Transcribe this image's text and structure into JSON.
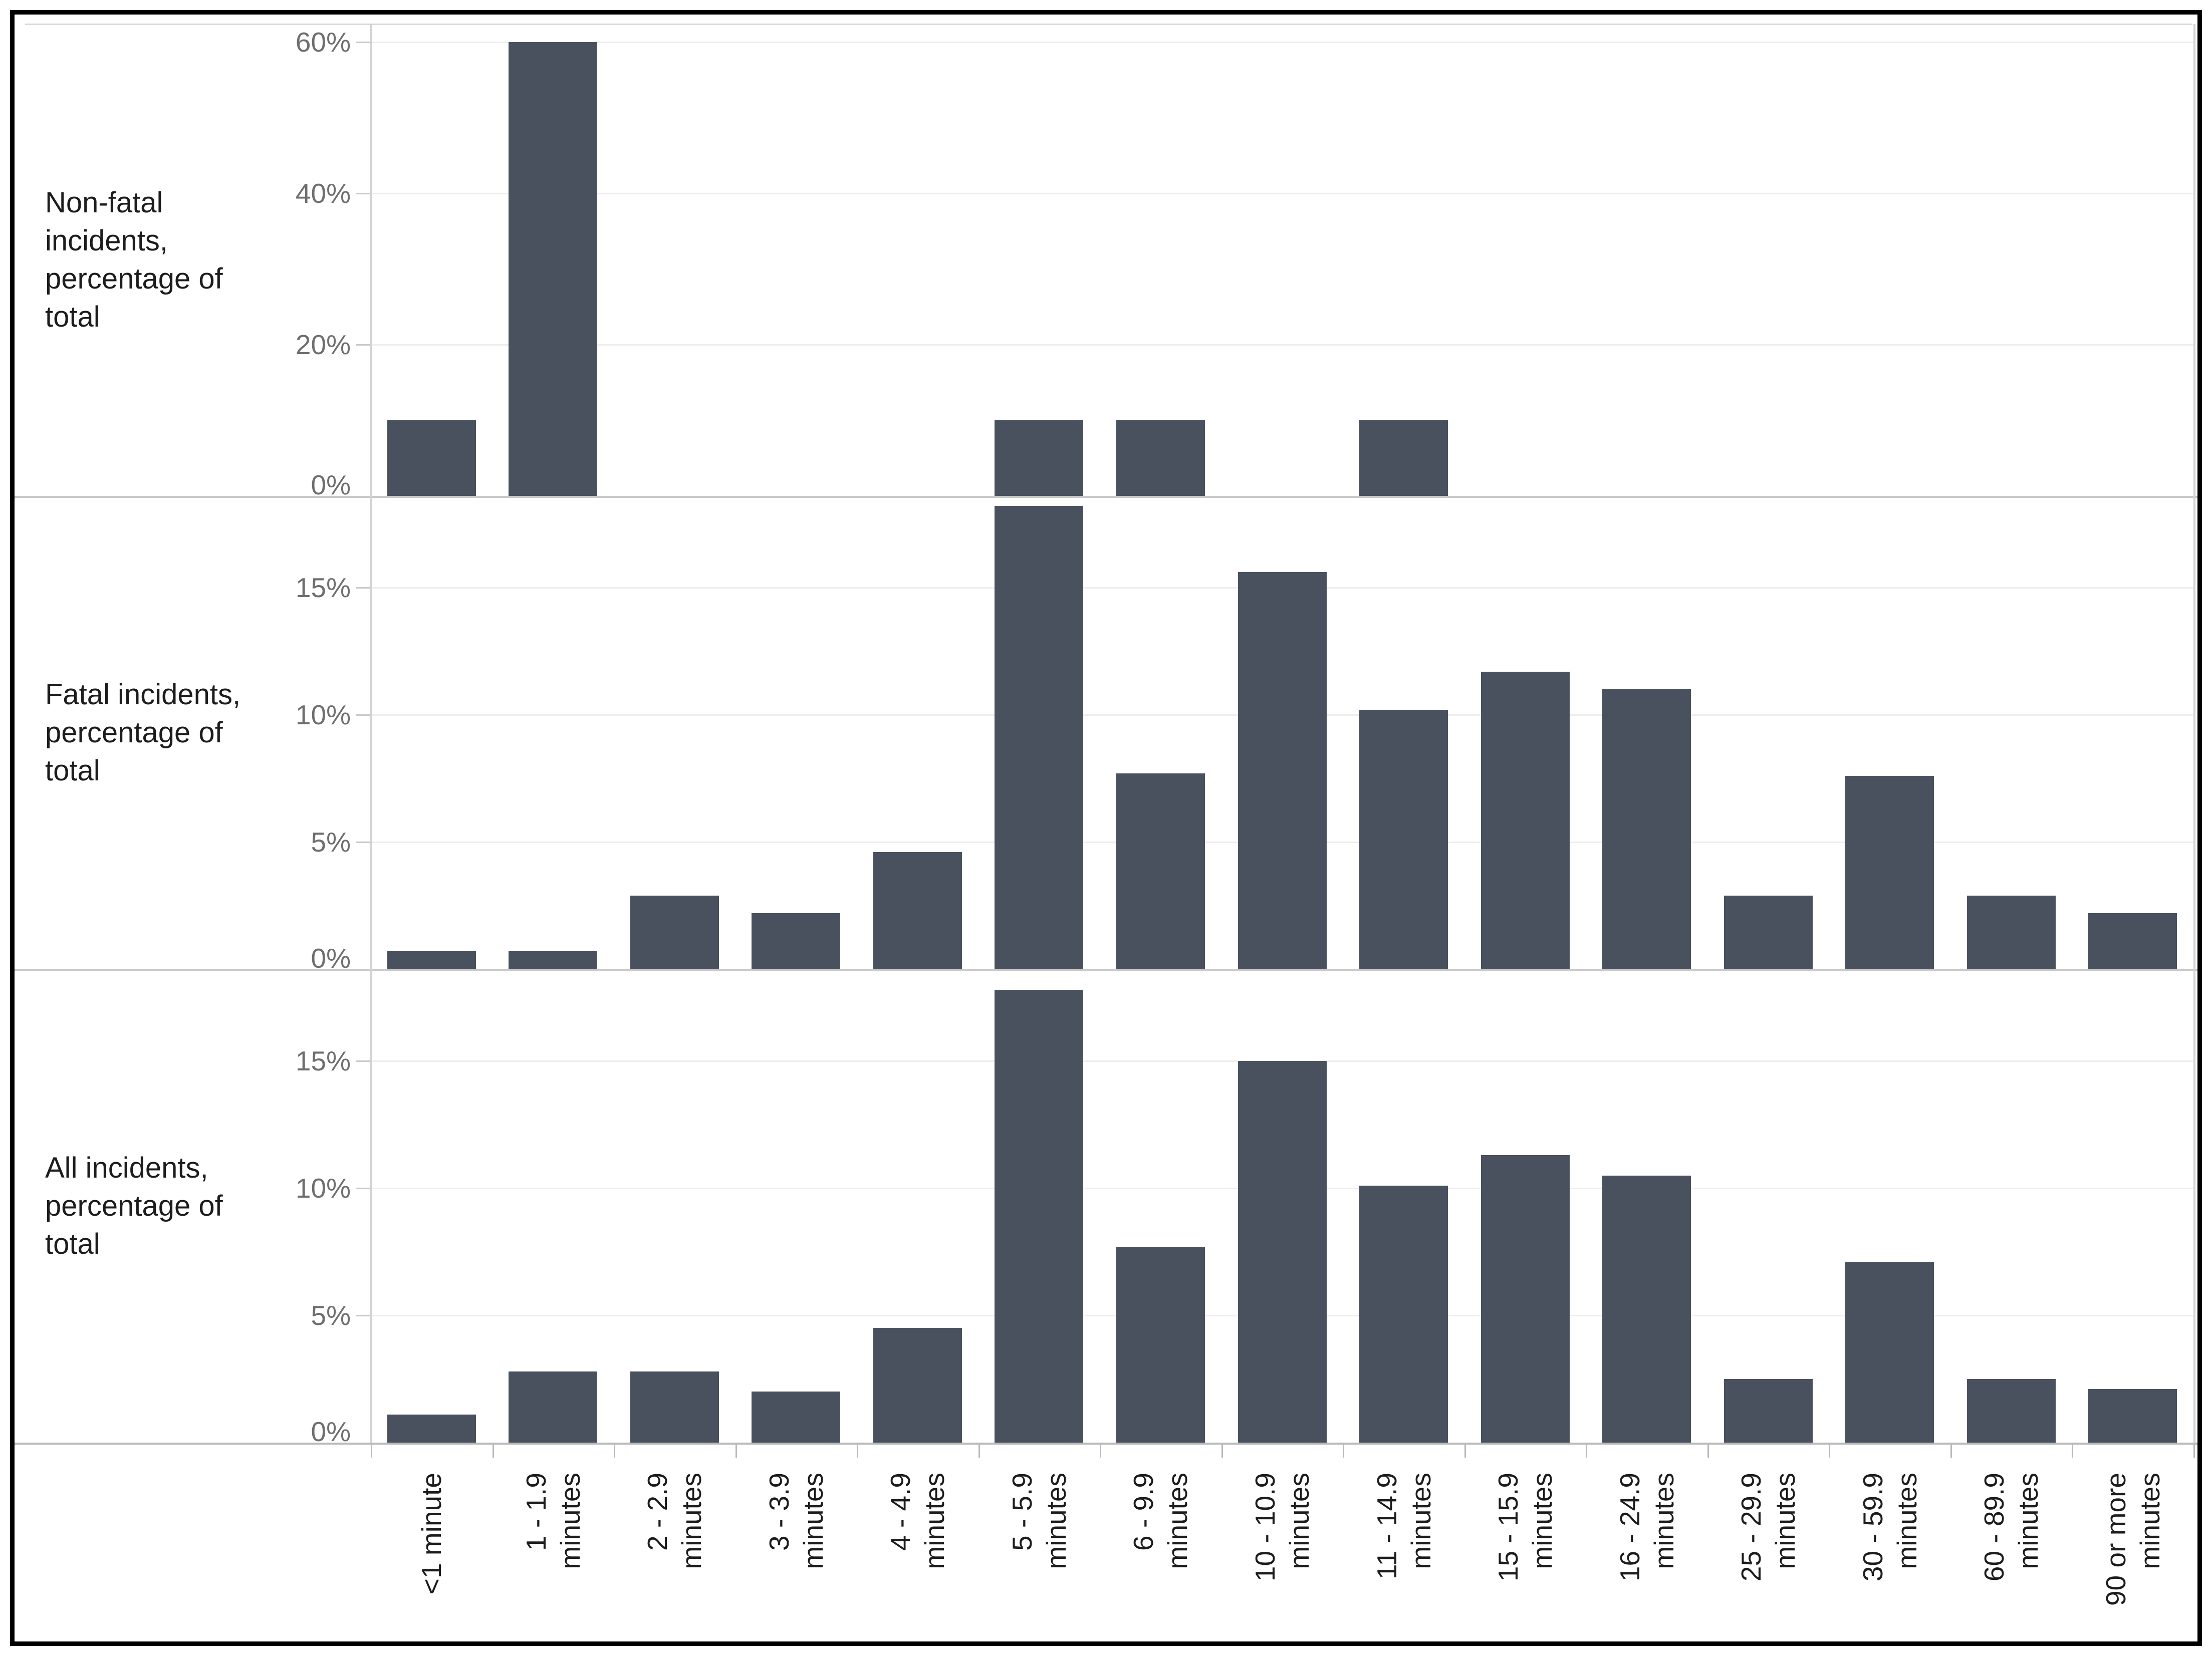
{
  "figure": {
    "background": "#ffffff",
    "frame_color": "#000000",
    "bar_color": "#4a515e",
    "gridline_color": "#eeeeee",
    "panel_separator_color": "#c9c9c9",
    "bottom_axis_color": "#b9b9b9",
    "plot_border_color": "#d2d2d2",
    "top_border_color": "#d9d9d9",
    "tick_label_color": "#6e6e6e",
    "text_color": "#1c1c1c"
  },
  "chart_data": {
    "type": "bar",
    "layout": "small_multiples_rows",
    "title": "",
    "xlabel": "",
    "grid": true,
    "legend": false,
    "x_unit": "incident duration",
    "categories": [
      "<1 minute",
      "1 - 1.9 minutes",
      "2 - 2.9 minutes",
      "3 - 3.9 minutes",
      "4 - 4.9 minutes",
      "5 - 5.9 minutes",
      "6 - 9.9 minutes",
      "10 - 10.9 minutes",
      "11 - 14.9 minutes",
      "15 - 15.9 minutes",
      "16 - 24.9 minutes",
      "25 - 29.9 minutes",
      "30 - 59.9 minutes",
      "60 - 89.9 minutes",
      "90 or more minutes"
    ],
    "category_label_lines": [
      [
        "<1 minute"
      ],
      [
        "1 - 1.9",
        "minutes"
      ],
      [
        "2 - 2.9",
        "minutes"
      ],
      [
        "3 - 3.9",
        "minutes"
      ],
      [
        "4 - 4.9",
        "minutes"
      ],
      [
        "5 - 5.9",
        "minutes"
      ],
      [
        "6 - 9.9",
        "minutes"
      ],
      [
        "10 - 10.9",
        "minutes"
      ],
      [
        "11 - 14.9",
        "minutes"
      ],
      [
        "15 - 15.9",
        "minutes"
      ],
      [
        "16 - 24.9",
        "minutes"
      ],
      [
        "25 - 29.9",
        "minutes"
      ],
      [
        "30 - 59.9",
        "minutes"
      ],
      [
        "60 - 89.9",
        "minutes"
      ],
      [
        "90 or more",
        "minutes"
      ]
    ],
    "panels": [
      {
        "key": "non-fatal",
        "row_label": "Non-fatal incidents, percentage of total",
        "row_label_lines": [
          "Non-fatal",
          "incidents,",
          "percentage of",
          "total"
        ],
        "y_max": 62.4,
        "y_ticks": [
          {
            "value": 0,
            "label": "0%"
          },
          {
            "value": 20,
            "label": "20%"
          },
          {
            "value": 40,
            "label": "40%"
          },
          {
            "value": 60,
            "label": "60%"
          }
        ],
        "values": [
          10,
          60,
          0,
          0,
          0,
          10,
          10,
          0,
          10,
          0,
          0,
          0,
          0,
          0,
          0
        ]
      },
      {
        "key": "fatal",
        "row_label": "Fatal incidents, percentage of total",
        "row_label_lines": [
          "Fatal incidents,",
          "percentage of",
          "total"
        ],
        "y_max": 18.6,
        "y_ticks": [
          {
            "value": 0,
            "label": "0%"
          },
          {
            "value": 5,
            "label": "5%"
          },
          {
            "value": 10,
            "label": "10%"
          },
          {
            "value": 15,
            "label": "15%"
          }
        ],
        "values": [
          0.7,
          0.7,
          2.9,
          2.2,
          4.6,
          18.2,
          7.7,
          15.6,
          10.2,
          11.7,
          11.0,
          2.9,
          7.6,
          2.9,
          2.2
        ]
      },
      {
        "key": "all",
        "row_label": "All incidents, percentage of total",
        "row_label_lines": [
          "All incidents,",
          "percentage of",
          "total"
        ],
        "y_max": 18.6,
        "y_ticks": [
          {
            "value": 0,
            "label": "0%"
          },
          {
            "value": 5,
            "label": "5%"
          },
          {
            "value": 10,
            "label": "10%"
          },
          {
            "value": 15,
            "label": "15%"
          }
        ],
        "values": [
          1.1,
          2.8,
          2.8,
          2.0,
          4.5,
          17.8,
          7.7,
          15.0,
          10.1,
          11.3,
          10.5,
          2.5,
          7.1,
          2.5,
          2.1
        ]
      }
    ]
  }
}
